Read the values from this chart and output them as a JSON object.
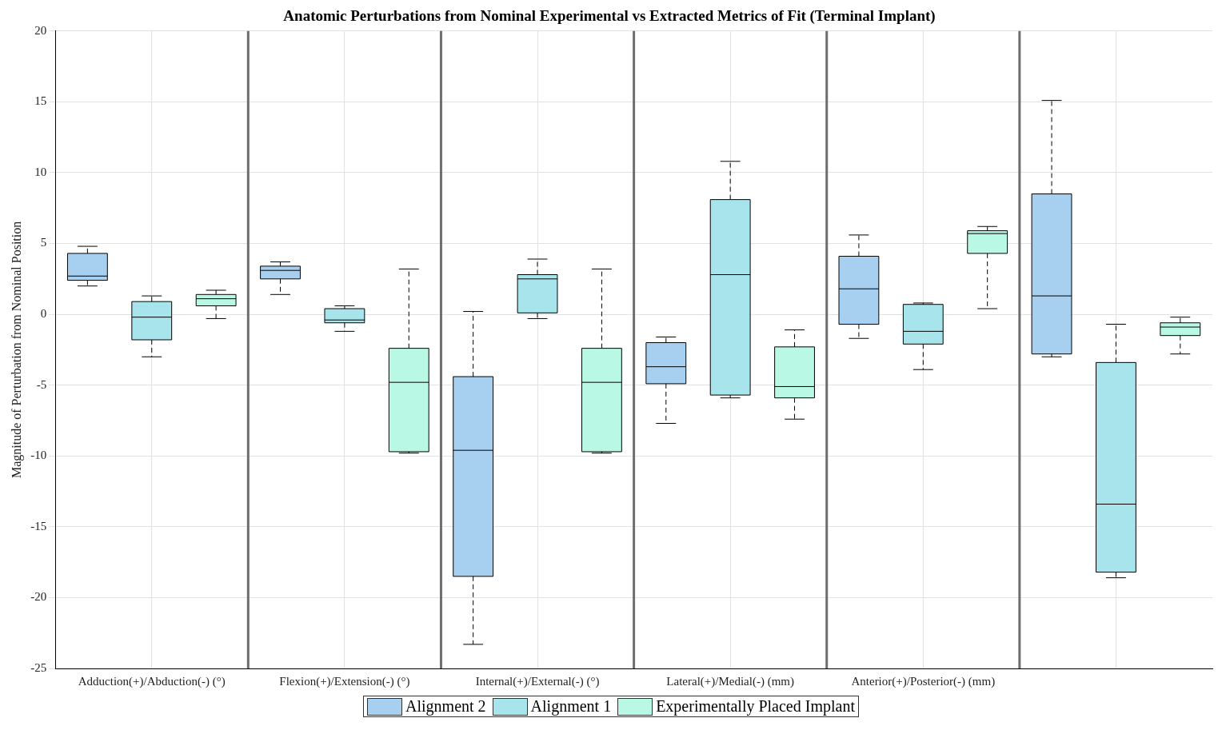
{
  "chart_data": {
    "type": "box",
    "title": "Anatomic Perturbations from Nominal Experimental vs Extracted Metrics of Fit (Terminal Implant)",
    "ylabel": "Magnitude of Perturbation from Nominal Position",
    "categories": [
      "Adduction(+)/Abduction(-) (°)",
      "Flexion(+)/Extension(-) (°)",
      "Internal(+)/External(-) (°)",
      "Lateral(+)/Medial(-) (mm)",
      "Anterior(+)/Posterior(-) (mm)",
      null
    ],
    "ylim": [
      -25,
      20
    ],
    "yticks": [
      -25,
      -20,
      -15,
      -10,
      -5,
      0,
      5,
      10,
      15,
      20
    ],
    "grid": true,
    "legend": "bottom",
    "series": [
      {
        "name": "Alignment 2",
        "color": "#a6cff0",
        "boxes": [
          {
            "low": 2.0,
            "q1": 2.4,
            "median": 2.7,
            "q3": 4.3,
            "high": 4.8
          },
          {
            "low": 1.4,
            "q1": 2.5,
            "median": 3.1,
            "q3": 3.4,
            "high": 3.7
          },
          {
            "low": -23.3,
            "q1": -18.5,
            "median": -9.6,
            "q3": -4.4,
            "high": 0.2
          },
          {
            "low": -7.7,
            "q1": -4.9,
            "median": -3.7,
            "q3": -2.0,
            "high": -1.6
          },
          {
            "low": -1.7,
            "q1": -0.7,
            "median": 1.8,
            "q3": 4.1,
            "high": 5.6
          },
          {
            "low": -3.0,
            "q1": -2.8,
            "median": 1.3,
            "q3": 8.5,
            "high": 15.1
          }
        ]
      },
      {
        "name": "Alignment 1",
        "color": "#a8e4ec",
        "boxes": [
          {
            "low": -3.0,
            "q1": -1.8,
            "median": -0.2,
            "q3": 0.9,
            "high": 1.3
          },
          {
            "low": -1.2,
            "q1": -0.6,
            "median": -0.4,
            "q3": 0.4,
            "high": 0.6
          },
          {
            "low": -0.3,
            "q1": 0.1,
            "median": 2.5,
            "q3": 2.8,
            "high": 3.9
          },
          {
            "low": -5.9,
            "q1": -5.7,
            "median": 2.8,
            "q3": 8.1,
            "high": 10.8
          },
          {
            "low": -3.9,
            "q1": -2.1,
            "median": -1.2,
            "q3": 0.7,
            "high": 0.8
          },
          {
            "low": -18.6,
            "q1": -18.2,
            "median": -13.4,
            "q3": -3.4,
            "high": -0.7
          }
        ]
      },
      {
        "name": "Experimentally Placed Implant",
        "color": "#baf8e6",
        "boxes": [
          {
            "low": -0.3,
            "q1": 0.6,
            "median": 1.1,
            "q3": 1.4,
            "high": 1.7
          },
          {
            "low": -9.8,
            "q1": -9.7,
            "median": -4.8,
            "q3": -2.4,
            "high": 3.2
          },
          {
            "low": -9.8,
            "q1": -9.7,
            "median": -4.8,
            "q3": -2.4,
            "high": 3.2
          },
          {
            "low": -7.4,
            "q1": -5.9,
            "median": -5.1,
            "q3": -2.3,
            "high": -1.1
          },
          {
            "low": 0.4,
            "q1": 4.3,
            "median": 5.7,
            "q3": 5.9,
            "high": 6.2
          },
          {
            "low": -2.8,
            "q1": -1.5,
            "median": -0.9,
            "q3": -0.6,
            "high": -0.2
          }
        ]
      }
    ]
  }
}
